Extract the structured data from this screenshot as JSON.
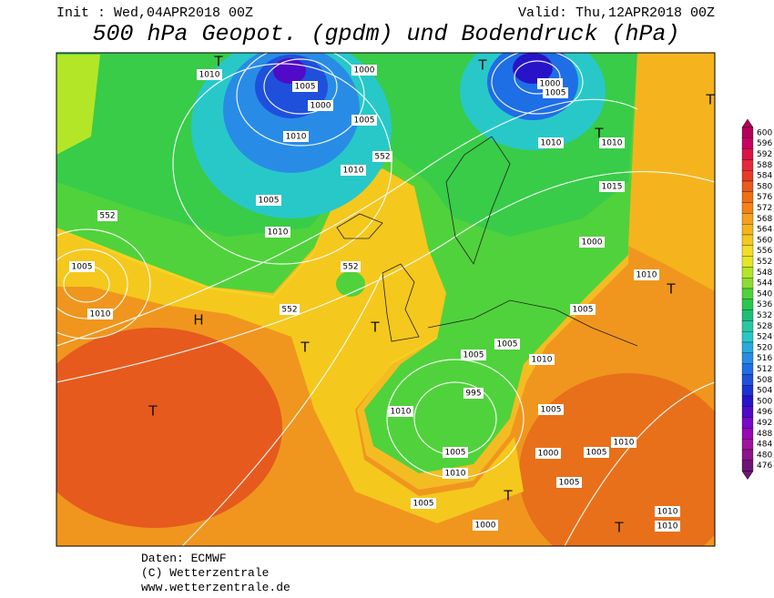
{
  "header": {
    "init": "Init : Wed,04APR2018 00Z",
    "valid": "Valid: Thu,12APR2018 00Z",
    "title": "500 hPa Geopot. (gpdm) und Bodendruck (hPa)"
  },
  "colorbar": {
    "labels": [
      600,
      596,
      592,
      588,
      584,
      580,
      576,
      572,
      568,
      564,
      560,
      556,
      552,
      548,
      544,
      540,
      536,
      532,
      528,
      524,
      520,
      516,
      512,
      508,
      504,
      500,
      496,
      492,
      488,
      484,
      480,
      476
    ],
    "colors": [
      "#b4005a",
      "#c80064",
      "#dc1446",
      "#e6283c",
      "#e63c28",
      "#eb5a1e",
      "#f06e14",
      "#f58214",
      "#f5a01e",
      "#f5b41e",
      "#f5c81e",
      "#f5dc28",
      "#e6e628",
      "#b4e628",
      "#8cdc32",
      "#50d23c",
      "#28c850",
      "#1ebe78",
      "#28c8a0",
      "#28c8c8",
      "#28aadc",
      "#288ce6",
      "#1e6ee6",
      "#1e50dc",
      "#1e32d2",
      "#2814c8",
      "#500ac8",
      "#780ac8",
      "#960ab4",
      "#a0149b",
      "#8c148c",
      "#6e1478"
    ]
  },
  "map_labels": [
    "1010",
    "1005",
    "1000",
    "1000",
    "1005",
    "1010",
    "1010",
    "1005",
    "1010",
    "552",
    "552",
    "552",
    "552",
    "1005",
    "1010",
    "H",
    "T",
    "T",
    "T",
    "1000",
    "1005",
    "1010",
    "1010",
    "1015",
    "1000",
    "1010",
    "1005",
    "1005",
    "1005",
    "1010",
    "995",
    "1010",
    "1005",
    "1010",
    "1005",
    "1000",
    "1005",
    "1010",
    "1005",
    "1005",
    "1000",
    "1010",
    "1010",
    "T",
    "T",
    "T",
    "T",
    "T",
    "T",
    "T"
  ],
  "footer": {
    "source": "Daten: ECMWF",
    "copyright": "(C) Wetterzentrale",
    "url": "www.wetterzentrale.de"
  }
}
